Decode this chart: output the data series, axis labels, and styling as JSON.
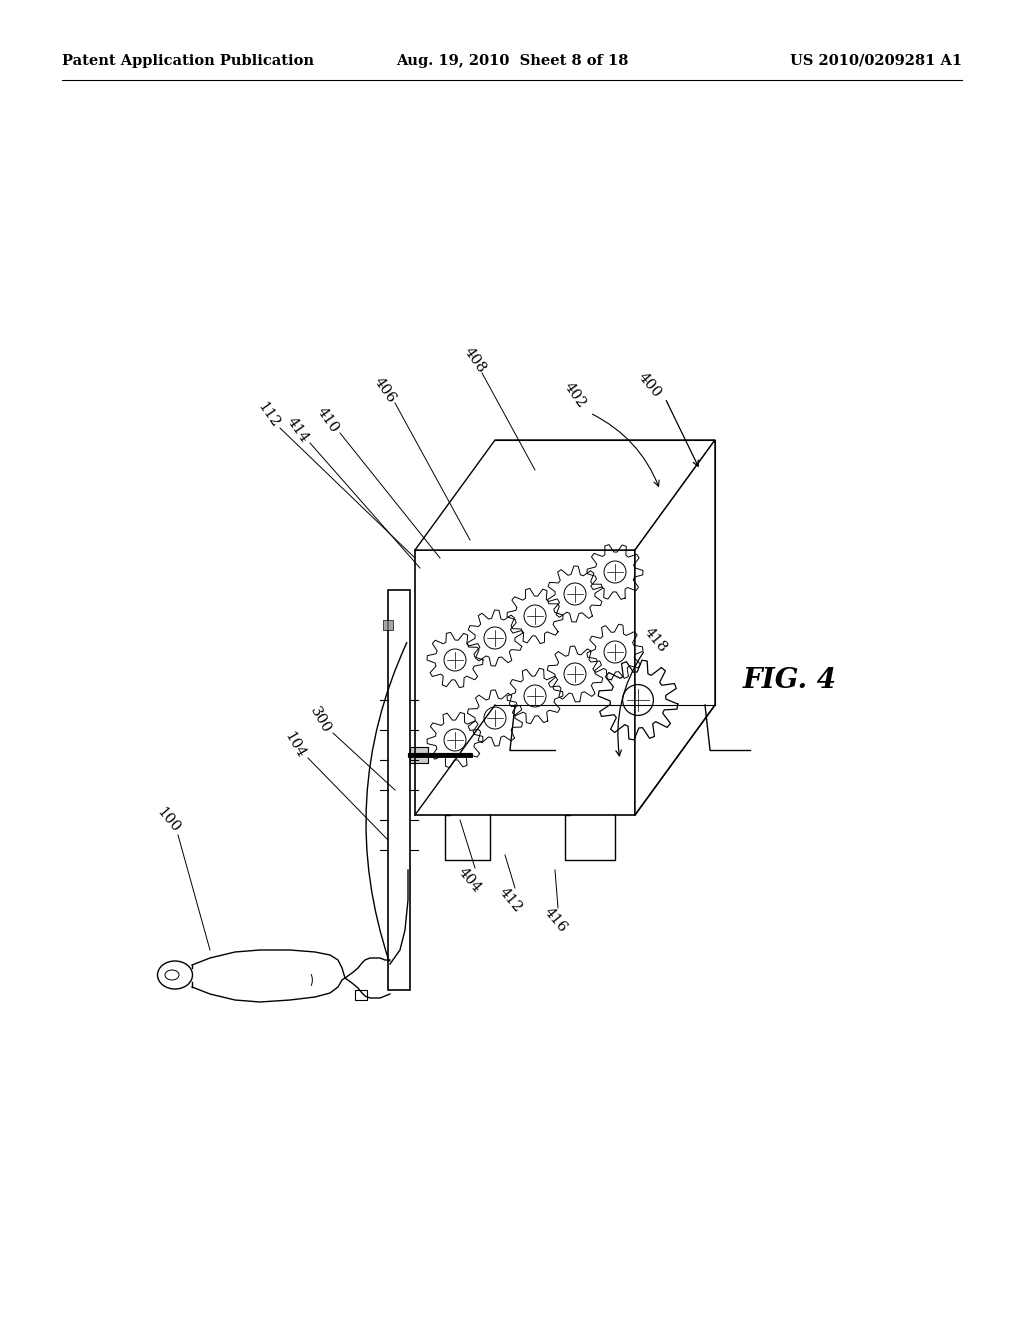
{
  "background_color": "#ffffff",
  "header_left": "Patent Application Publication",
  "header_center": "Aug. 19, 2010  Sheet 8 of 18",
  "header_right": "US 2010/0209281 A1",
  "figure_label": "FIG. 4",
  "header_fontsize": 10.5,
  "label_fontsize": 10.5,
  "fig4_fontsize": 20
}
